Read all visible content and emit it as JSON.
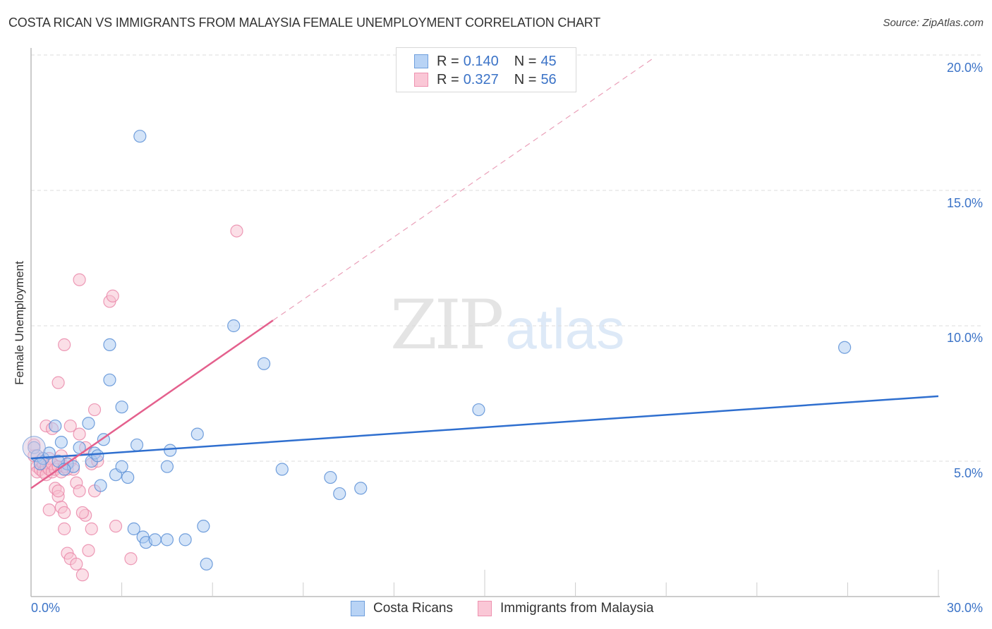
{
  "header": {
    "title": "COSTA RICAN VS IMMIGRANTS FROM MALAYSIA FEMALE UNEMPLOYMENT CORRELATION CHART",
    "source": "Source: ZipAtlas.com"
  },
  "watermark": {
    "zip": "ZIP",
    "atlas": "atlas"
  },
  "legend": {
    "rows": [
      {
        "r_label": "R =",
        "r_value": "0.140",
        "n_label": "N =",
        "n_value": "45",
        "color": "#a8c8f0",
        "border": "#6f9fdc"
      },
      {
        "r_label": "R =",
        "r_value": "0.327",
        "n_label": "N =",
        "n_value": "56",
        "color": "#f8bfd0",
        "border": "#ee92b0"
      }
    ]
  },
  "bottom_legend": {
    "items": [
      {
        "label": "Costa Ricans",
        "color": "#b8d3f5",
        "border": "#6f9fdc"
      },
      {
        "label": "Immigrants from Malaysia",
        "color": "#fac7d6",
        "border": "#ee92b0"
      }
    ]
  },
  "axes": {
    "ylabel": "Female Unemployment",
    "x_min_label": "0.0%",
    "x_max_label": "30.0%",
    "y_tick_labels": [
      "20.0%",
      "15.0%",
      "10.0%",
      "5.0%"
    ]
  },
  "colors": {
    "blue_fill": "#a9c9f1",
    "blue_stroke": "#5a8fd6",
    "blue_line": "#2f6fcf",
    "pink_fill": "#f8bfcf",
    "pink_stroke": "#ea8aaa",
    "pink_line": "#e4608d",
    "tick_label": "#3b73c7",
    "grid": "#dddddd"
  },
  "chart_data": {
    "type": "scatter",
    "title": "COSTA RICAN VS IMMIGRANTS FROM MALAYSIA FEMALE UNEMPLOYMENT CORRELATION CHART",
    "xlabel": "",
    "ylabel": "Female Unemployment",
    "xlim": [
      0,
      30
    ],
    "ylim": [
      0,
      20
    ],
    "x_ticks": [
      "0.0%",
      "30.0%"
    ],
    "y_ticks": [
      "5.0%",
      "10.0%",
      "15.0%",
      "20.0%"
    ],
    "grid": "horizontal dashed",
    "legend_position": "top-center (stats) and bottom-center (series)",
    "series": [
      {
        "name": "Costa Ricans",
        "R": 0.14,
        "N": 45,
        "trend": {
          "x": [
            0,
            30
          ],
          "y": [
            5.1,
            7.4
          ]
        },
        "points": [
          [
            0.1,
            5.5
          ],
          [
            0.2,
            5.2
          ],
          [
            0.4,
            5.1
          ],
          [
            0.6,
            5.3
          ],
          [
            0.8,
            6.3
          ],
          [
            1.0,
            5.7
          ],
          [
            1.2,
            4.9
          ],
          [
            1.4,
            4.8
          ],
          [
            1.6,
            5.5
          ],
          [
            1.9,
            6.4
          ],
          [
            2.0,
            5.0
          ],
          [
            2.1,
            5.3
          ],
          [
            2.3,
            4.1
          ],
          [
            2.4,
            5.8
          ],
          [
            2.6,
            8.0
          ],
          [
            2.6,
            9.3
          ],
          [
            2.8,
            4.5
          ],
          [
            3.0,
            4.8
          ],
          [
            3.0,
            7.0
          ],
          [
            3.2,
            4.4
          ],
          [
            3.5,
            5.6
          ],
          [
            3.6,
            17.0
          ],
          [
            3.4,
            2.5
          ],
          [
            3.7,
            2.2
          ],
          [
            3.8,
            2.0
          ],
          [
            4.1,
            2.1
          ],
          [
            4.5,
            2.1
          ],
          [
            4.5,
            4.8
          ],
          [
            4.6,
            5.4
          ],
          [
            5.1,
            2.1
          ],
          [
            5.5,
            6.0
          ],
          [
            5.7,
            2.6
          ],
          [
            5.8,
            1.2
          ],
          [
            6.7,
            10.0
          ],
          [
            7.7,
            8.6
          ],
          [
            8.3,
            4.7
          ],
          [
            9.9,
            4.4
          ],
          [
            10.2,
            3.8
          ],
          [
            10.9,
            4.0
          ],
          [
            14.8,
            6.9
          ],
          [
            26.9,
            9.2
          ],
          [
            0.3,
            4.9
          ],
          [
            0.9,
            5.0
          ],
          [
            1.1,
            4.7
          ],
          [
            2.2,
            5.2
          ]
        ]
      },
      {
        "name": "Immigrants from Malaysia",
        "R": 0.327,
        "N": 56,
        "trend": {
          "x": [
            0,
            8.0
          ],
          "y": [
            4.0,
            10.2
          ],
          "dashed_extension": {
            "x": [
              8.0,
              20.6
            ],
            "y": [
              10.2,
              19.9
            ]
          }
        },
        "points": [
          [
            0.1,
            5.6
          ],
          [
            0.1,
            5.2
          ],
          [
            0.2,
            4.8
          ],
          [
            0.2,
            4.6
          ],
          [
            0.3,
            5.0
          ],
          [
            0.3,
            4.7
          ],
          [
            0.4,
            4.9
          ],
          [
            0.4,
            4.6
          ],
          [
            0.5,
            4.8
          ],
          [
            0.5,
            4.5
          ],
          [
            0.6,
            4.7
          ],
          [
            0.6,
            5.1
          ],
          [
            0.7,
            4.6
          ],
          [
            0.7,
            4.9
          ],
          [
            0.8,
            4.7
          ],
          [
            0.9,
            4.8
          ],
          [
            1.0,
            4.6
          ],
          [
            1.0,
            5.2
          ],
          [
            1.1,
            4.8
          ],
          [
            1.2,
            4.7
          ],
          [
            1.3,
            5.0
          ],
          [
            1.4,
            4.7
          ],
          [
            0.5,
            6.3
          ],
          [
            0.7,
            6.2
          ],
          [
            0.8,
            4.0
          ],
          [
            0.9,
            3.7
          ],
          [
            0.6,
            3.2
          ],
          [
            1.0,
            3.3
          ],
          [
            1.1,
            3.1
          ],
          [
            0.9,
            3.9
          ],
          [
            1.1,
            2.5
          ],
          [
            1.2,
            1.6
          ],
          [
            1.3,
            1.4
          ],
          [
            1.5,
            1.2
          ],
          [
            1.7,
            0.8
          ],
          [
            1.5,
            4.2
          ],
          [
            1.6,
            3.9
          ],
          [
            1.8,
            3.0
          ],
          [
            1.7,
            3.1
          ],
          [
            2.0,
            2.5
          ],
          [
            1.9,
            1.7
          ],
          [
            2.0,
            4.9
          ],
          [
            2.1,
            3.9
          ],
          [
            2.2,
            5.0
          ],
          [
            1.6,
            6.0
          ],
          [
            1.3,
            6.3
          ],
          [
            1.8,
            5.5
          ],
          [
            2.1,
            6.9
          ],
          [
            1.1,
            9.3
          ],
          [
            0.9,
            7.9
          ],
          [
            1.6,
            11.7
          ],
          [
            2.6,
            10.9
          ],
          [
            2.7,
            11.1
          ],
          [
            2.8,
            2.6
          ],
          [
            3.3,
            1.4
          ],
          [
            6.8,
            13.5
          ]
        ]
      }
    ]
  }
}
